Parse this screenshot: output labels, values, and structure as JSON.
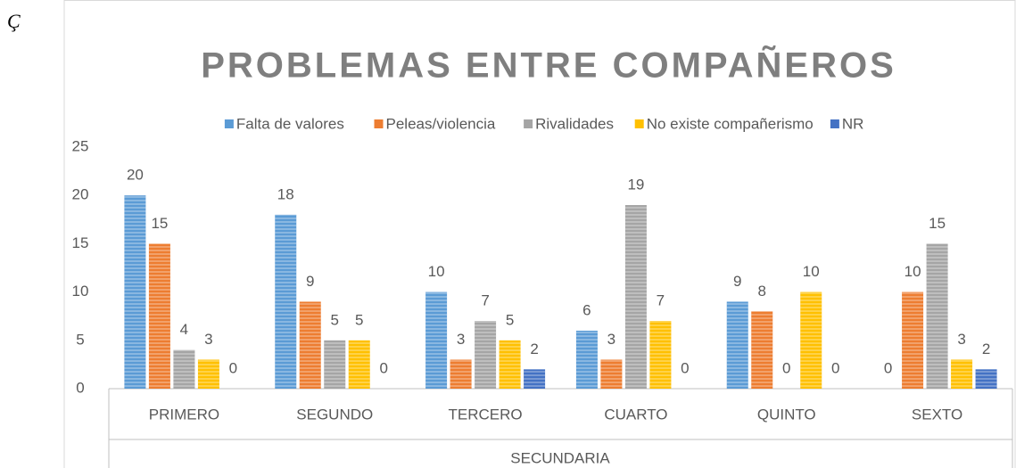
{
  "corner_text": "Ç",
  "chart_data": {
    "type": "bar",
    "title": "PROBLEMAS ENTRE COMPAÑEROS",
    "x_label": "SECUNDARIA",
    "categories": [
      "PRIMERO",
      "SEGUNDO",
      "TERCERO",
      "CUARTO",
      "QUINTO",
      "SEXTO"
    ],
    "series": [
      {
        "name": "Falta de valores",
        "color": "#5b9bd5",
        "values": [
          20,
          18,
          10,
          6,
          9,
          0
        ]
      },
      {
        "name": "Peleas/violencia",
        "color": "#ed7d31",
        "values": [
          15,
          9,
          3,
          3,
          8,
          10
        ]
      },
      {
        "name": "Rivalidades",
        "color": "#a5a5a5",
        "values": [
          4,
          5,
          7,
          19,
          0,
          15
        ]
      },
      {
        "name": "No existe compañerismo",
        "color": "#ffc000",
        "values": [
          3,
          5,
          5,
          7,
          10,
          3
        ]
      },
      {
        "name": "NR",
        "color": "#4472c4",
        "values": [
          0,
          0,
          2,
          0,
          0,
          2
        ]
      }
    ],
    "ylim": [
      0,
      25
    ],
    "yticks": [
      0,
      5,
      10,
      15,
      20,
      25
    ],
    "legend": "top",
    "grid": false
  }
}
